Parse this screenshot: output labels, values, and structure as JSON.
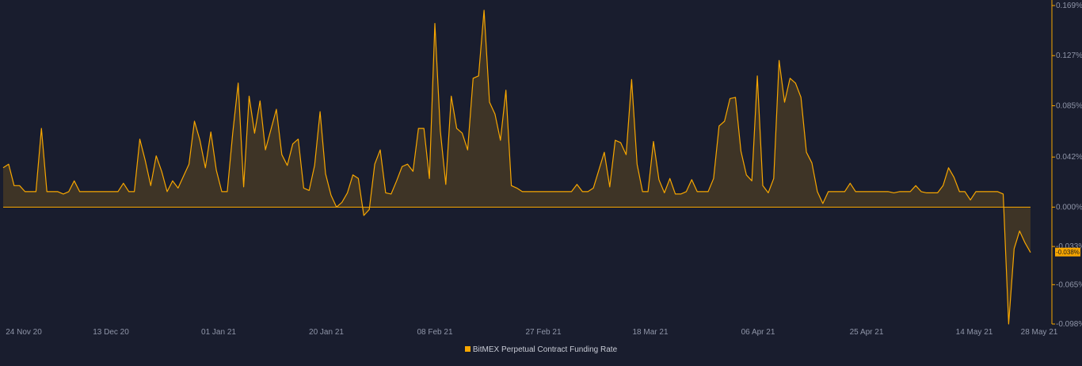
{
  "chart_data": {
    "type": "area",
    "series": [
      {
        "name": "BitMEX Perpetual Contract Funding Rate",
        "color": "#f7a600",
        "unit": "%",
        "values": [
          0.033,
          0.036,
          0.018,
          0.018,
          0.013,
          0.013,
          0.013,
          0.066,
          0.013,
          0.013,
          0.013,
          0.011,
          0.013,
          0.022,
          0.013,
          0.013,
          0.013,
          0.013,
          0.013,
          0.013,
          0.013,
          0.013,
          0.02,
          0.013,
          0.013,
          0.057,
          0.039,
          0.018,
          0.043,
          0.03,
          0.013,
          0.022,
          0.016,
          0.026,
          0.036,
          0.072,
          0.056,
          0.033,
          0.063,
          0.031,
          0.013,
          0.013,
          0.062,
          0.104,
          0.017,
          0.093,
          0.062,
          0.089,
          0.048,
          0.065,
          0.082,
          0.044,
          0.035,
          0.053,
          0.057,
          0.016,
          0.014,
          0.035,
          0.08,
          0.028,
          0.01,
          0.0,
          0.004,
          0.012,
          0.027,
          0.024,
          -0.007,
          -0.002,
          0.036,
          0.048,
          0.012,
          0.011,
          0.022,
          0.034,
          0.036,
          0.03,
          0.066,
          0.066,
          0.024,
          0.154,
          0.064,
          0.019,
          0.093,
          0.066,
          0.062,
          0.048,
          0.108,
          0.11,
          0.165,
          0.088,
          0.078,
          0.056,
          0.098,
          0.018,
          0.016,
          0.013,
          0.013,
          0.013,
          0.013,
          0.013,
          0.013,
          0.013,
          0.013,
          0.013,
          0.013,
          0.019,
          0.013,
          0.013,
          0.016,
          0.031,
          0.046,
          0.017,
          0.056,
          0.054,
          0.044,
          0.107,
          0.036,
          0.013,
          0.013,
          0.055,
          0.023,
          0.012,
          0.024,
          0.011,
          0.011,
          0.013,
          0.023,
          0.013,
          0.013,
          0.013,
          0.024,
          0.068,
          0.072,
          0.091,
          0.092,
          0.047,
          0.027,
          0.022,
          0.11,
          0.018,
          0.012,
          0.024,
          0.123,
          0.088,
          0.108,
          0.104,
          0.092,
          0.046,
          0.037,
          0.013,
          0.003,
          0.013,
          0.013,
          0.013,
          0.013,
          0.02,
          0.013,
          0.013,
          0.013,
          0.013,
          0.013,
          0.013,
          0.013,
          0.012,
          0.013,
          0.013,
          0.013,
          0.018,
          0.013,
          0.012,
          0.012,
          0.012,
          0.018,
          0.033,
          0.025,
          0.013,
          0.013,
          0.006,
          0.013,
          0.013,
          0.013,
          0.013,
          0.013,
          0.011,
          -0.098,
          -0.035,
          -0.02,
          -0.03,
          -0.038
        ]
      }
    ],
    "x_tick_labels": [
      "24 Nov 20",
      "13 Dec 20",
      "01 Jan 21",
      "20 Jan 21",
      "08 Feb 21",
      "27 Feb 21",
      "18 Mar 21",
      "06 Apr 21",
      "25 Apr 21",
      "14 May 21",
      "28 May 21"
    ],
    "y_tick_labels": [
      "0.169%",
      "0.127%",
      "0.085%",
      "0.042%",
      "0.000%",
      "-0.033%",
      "-0.065%",
      "-0.098%"
    ],
    "y_tick_values": [
      0.169,
      0.127,
      0.085,
      0.042,
      0.0,
      -0.033,
      -0.065,
      -0.098
    ],
    "ylim": [
      -0.098,
      0.169
    ],
    "last_value_label": "-0.038%",
    "grid": false,
    "legend_position": "bottom-center"
  }
}
